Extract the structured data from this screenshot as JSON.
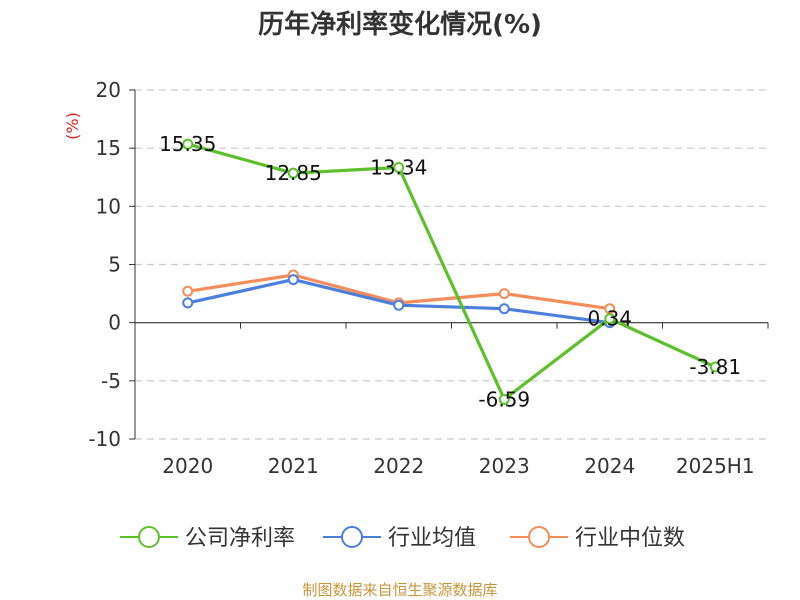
{
  "chart_data": {
    "type": "line",
    "title": "历年净利率变化情况(%)",
    "unit_label": "(%)",
    "categories": [
      "2020",
      "2021",
      "2022",
      "2023",
      "2024",
      "2025H1"
    ],
    "ylim": [
      -10,
      20
    ],
    "yticks": [
      "20",
      "15",
      "10",
      "5",
      "0",
      "-5",
      "-10"
    ],
    "grid": true,
    "legend_position": "bottom",
    "series": [
      {
        "name": "公司净利率",
        "color": "#5cc02a",
        "values": [
          15.35,
          12.85,
          13.34,
          -6.59,
          0.34,
          -3.81
        ],
        "labels": [
          "15.35",
          "12.85",
          "13.34",
          "-6.59",
          "0.34",
          "-3.81"
        ]
      },
      {
        "name": "行业均值",
        "color": "#4a7fdc",
        "values": [
          1.7,
          3.7,
          1.5,
          1.2,
          0.0,
          null
        ]
      },
      {
        "name": "行业中位数",
        "color": "#f58c5a",
        "values": [
          2.7,
          4.1,
          1.7,
          2.5,
          1.2,
          null
        ]
      }
    ],
    "source": "制图数据来自恒生聚源数据库"
  }
}
